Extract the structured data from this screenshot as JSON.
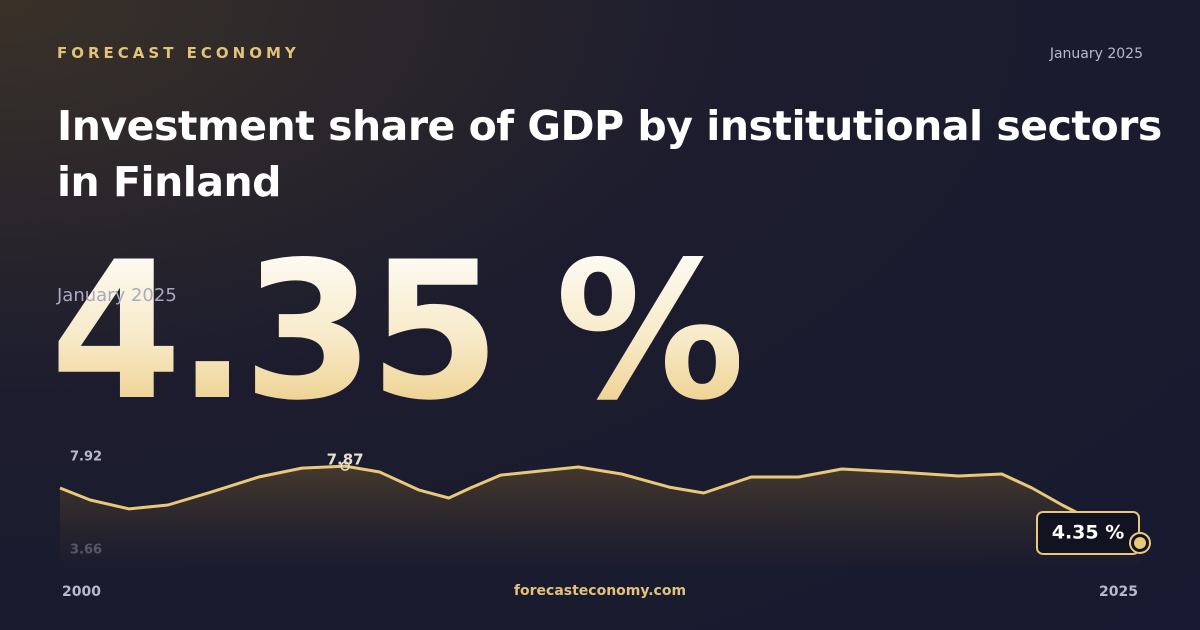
{
  "brand": "FORECAST ECONOMY",
  "date": "January 2025",
  "title": "Investment share of GDP by institutional sectors in Finland",
  "headline_date": "January 2025",
  "footer": "forecasteconomy.com",
  "chart_data": {
    "type": "area",
    "x": [
      2000.0,
      2000.7,
      2001.6,
      2002.5,
      2003.5,
      2004.6,
      2005.6,
      2006.6,
      2007.4,
      2008.3,
      2009.0,
      2009.5,
      2010.2,
      2012.0,
      2013.0,
      2014.1,
      2014.9,
      2016.0,
      2017.1,
      2018.1,
      2019.4,
      2020.8,
      2021.8,
      2022.5,
      2023.2,
      2024.1,
      2025.0
    ],
    "values": [
      6.87,
      6.32,
      5.91,
      6.09,
      6.68,
      7.37,
      7.78,
      7.87,
      7.6,
      6.78,
      6.41,
      6.87,
      7.46,
      7.83,
      7.51,
      6.91,
      6.64,
      7.37,
      7.37,
      7.74,
      7.6,
      7.42,
      7.51,
      6.87,
      6.09,
      5.17,
      4.35
    ],
    "value_labels": [
      null,
      null,
      null,
      null,
      null,
      null,
      null,
      null,
      null,
      null,
      null,
      null,
      null,
      null,
      null,
      null,
      null,
      null,
      null,
      null,
      null,
      null,
      null,
      null,
      null,
      null,
      "4.35 %"
    ],
    "color": "#e9c77b",
    "xlim": [
      2000,
      2025
    ],
    "xticks": [
      2000,
      2025
    ],
    "ylim": [
      3.34,
      8.38
    ],
    "yticks": [
      3.66,
      7.92
    ]
  }
}
